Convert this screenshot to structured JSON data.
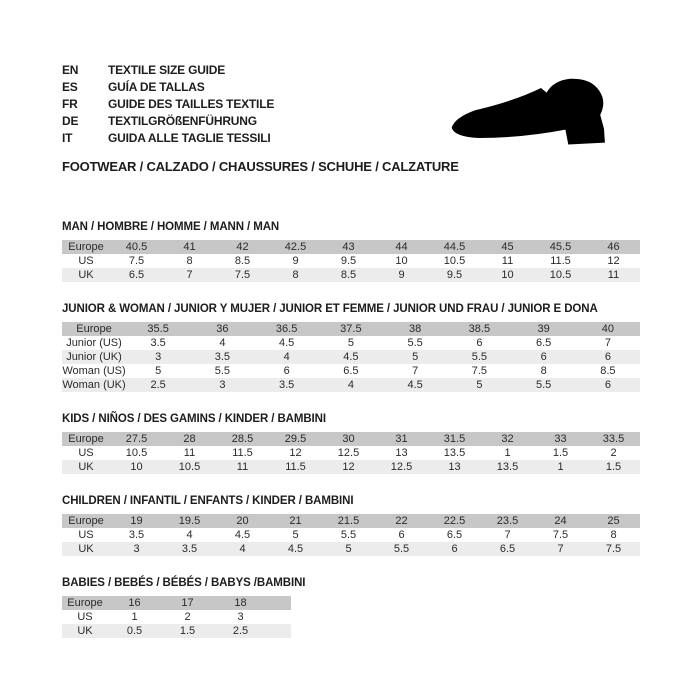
{
  "header": {
    "languages": [
      {
        "code": "EN",
        "label": "TEXTILE SIZE GUIDE"
      },
      {
        "code": "ES",
        "label": "GUÍA DE TALLAS"
      },
      {
        "code": "FR",
        "label": "GUIDE DES TAILLES TEXTILE"
      },
      {
        "code": "DE",
        "label": "TEXTILGRÖßENFÜHRUNG"
      },
      {
        "code": "IT",
        "label": "GUIDA ALLE TAGLIE TESSILI"
      }
    ],
    "footwear_line": "FOOTWEAR / CALZADO / CHAUSSURES / SCHUHE / CALZATURE",
    "shoe_icon": "dress-shoe-silhouette",
    "colors": {
      "europe_row": "#c7c7c7",
      "alt_row": "#ececec",
      "text": "#262626",
      "shoe": "#000000"
    }
  },
  "tables": [
    {
      "id": "man",
      "title": "MAN / HOMBRE / HOMME / MANN / MAN",
      "rows": [
        {
          "label": "Europe",
          "values": [
            "40.5",
            "41",
            "42",
            "42.5",
            "43",
            "44",
            "44.5",
            "45",
            "45.5",
            "46"
          ]
        },
        {
          "label": "US",
          "values": [
            "7.5",
            "8",
            "8.5",
            "9",
            "9.5",
            "10",
            "10.5",
            "11",
            "11.5",
            "12"
          ]
        },
        {
          "label": "UK",
          "values": [
            "6.5",
            "7",
            "7.5",
            "8",
            "8.5",
            "9",
            "9.5",
            "10",
            "10.5",
            "11"
          ]
        }
      ]
    },
    {
      "id": "junior-woman",
      "title": "JUNIOR & WOMAN / JUNIOR Y MUJER / JUNIOR ET FEMME / JUNIOR UND FRAU / JUNIOR E DONA",
      "rows": [
        {
          "label": "Europe",
          "values": [
            "35.5",
            "36",
            "36.5",
            "37.5",
            "38",
            "38.5",
            "39",
            "40"
          ]
        },
        {
          "label": "Junior (US)",
          "values": [
            "3.5",
            "4",
            "4.5",
            "5",
            "5.5",
            "6",
            "6.5",
            "7"
          ]
        },
        {
          "label": "Junior (UK)",
          "values": [
            "3",
            "3.5",
            "4",
            "4.5",
            "5",
            "5.5",
            "6",
            "6"
          ]
        },
        {
          "label": "Woman (US)",
          "values": [
            "5",
            "5.5",
            "6",
            "6.5",
            "7",
            "7.5",
            "8",
            "8.5"
          ]
        },
        {
          "label": "Woman (UK)",
          "values": [
            "2.5",
            "3",
            "3.5",
            "4",
            "4.5",
            "5",
            "5.5",
            "6"
          ]
        }
      ]
    },
    {
      "id": "kids",
      "title": "KIDS / NIÑOS / DES GAMINS / KINDER / BAMBINI",
      "rows": [
        {
          "label": "Europe",
          "values": [
            "27.5",
            "28",
            "28.5",
            "29.5",
            "30",
            "31",
            "31.5",
            "32",
            "33",
            "33.5"
          ]
        },
        {
          "label": "US",
          "values": [
            "10.5",
            "11",
            "11.5",
            "12",
            "12.5",
            "13",
            "13.5",
            "1",
            "1.5",
            "2"
          ]
        },
        {
          "label": "UK",
          "values": [
            "10",
            "10.5",
            "11",
            "11.5",
            "12",
            "12.5",
            "13",
            "13.5",
            "1",
            "1.5"
          ]
        }
      ]
    },
    {
      "id": "children",
      "title": "CHILDREN / INFANTIL / ENFANTS / KINDER / BAMBINI",
      "rows": [
        {
          "label": "Europe",
          "values": [
            "19",
            "19.5",
            "20",
            "21",
            "21.5",
            "22",
            "22.5",
            "23.5",
            "24",
            "25"
          ]
        },
        {
          "label": "US",
          "values": [
            "3.5",
            "4",
            "4.5",
            "5",
            "5.5",
            "6",
            "6.5",
            "7",
            "7.5",
            "8"
          ]
        },
        {
          "label": "UK",
          "values": [
            "3",
            "3.5",
            "4",
            "4.5",
            "5",
            "5.5",
            "6",
            "6.5",
            "7",
            "7.5"
          ]
        }
      ]
    },
    {
      "id": "babies",
      "title": "BABIES / BEBÉS / BÉBÉS / BABYS /BAMBINI",
      "rows": [
        {
          "label": "Europe",
          "values": [
            "16",
            "17",
            "18"
          ]
        },
        {
          "label": "US",
          "values": [
            "1",
            "2",
            "3"
          ]
        },
        {
          "label": "UK",
          "values": [
            "0.5",
            "1.5",
            "2.5"
          ]
        }
      ]
    }
  ]
}
